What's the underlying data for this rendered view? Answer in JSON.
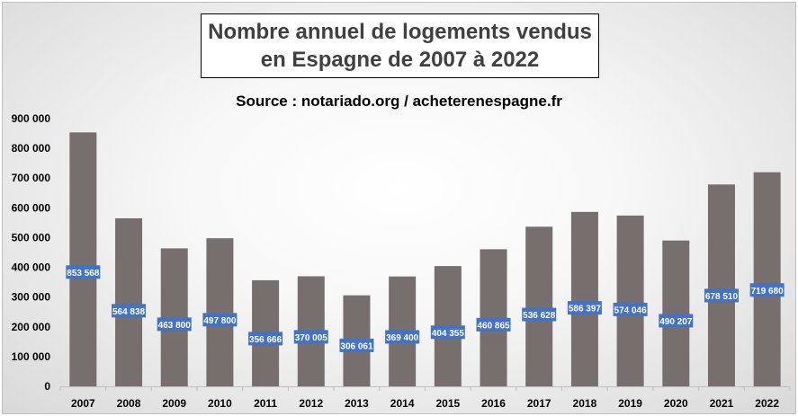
{
  "chart_data": {
    "type": "bar",
    "title_lines": [
      "Nombre annuel de logements vendus",
      "en Espagne de 2007 à 2022"
    ],
    "subtitle": "Source : notariado.org / acheterenespagne.fr",
    "categories": [
      "2007",
      "2008",
      "2009",
      "2010",
      "2011",
      "2012",
      "2013",
      "2014",
      "2015",
      "2016",
      "2017",
      "2018",
      "2019",
      "2020",
      "2021",
      "2022"
    ],
    "values": [
      853568,
      564838,
      463800,
      497800,
      356666,
      370005,
      306061,
      369400,
      404355,
      460865,
      536628,
      586397,
      574046,
      490207,
      678510,
      719680
    ],
    "data_labels": [
      "853 568",
      "564 838",
      "463 800",
      "497 800",
      "356 666",
      "370 005",
      "306 061",
      "369 400",
      "404 355",
      "460 865",
      "536 628",
      "586 397",
      "574 046",
      "490 207",
      "678 510",
      "719 680"
    ],
    "yticks": [
      0,
      100000,
      200000,
      300000,
      400000,
      500000,
      600000,
      700000,
      800000,
      900000
    ],
    "ytick_labels": [
      "0",
      "100 000",
      "200 000",
      "300 000",
      "400 000",
      "500 000",
      "600 000",
      "700 000",
      "800 000",
      "900 000"
    ],
    "ylim": [
      0,
      900000
    ],
    "grid": false,
    "legend": "none",
    "bar_color": "#776e6e",
    "label_color": "#4472c4"
  }
}
